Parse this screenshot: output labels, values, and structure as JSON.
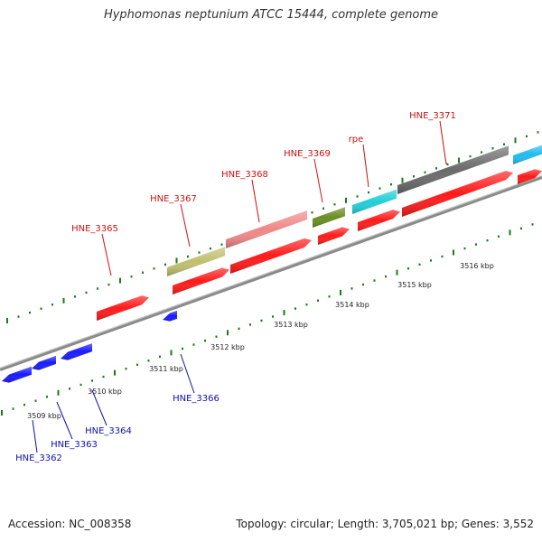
{
  "title": "Hyphomonas neptunium ATCC 15444, complete genome",
  "footer": {
    "accession": "Accession: NC_008358",
    "summary": "Topology: circular; Length: 3,705,021 bp; Genes: 3,552"
  },
  "colors": {
    "backbone": "#8a8a8a",
    "forward_label": "#cc1111",
    "reverse_label": "#1111aa",
    "tick": "#1a7a1a"
  },
  "scale_labels": [
    "3509 kbp",
    "3510 kbp",
    "3511 kbp",
    "3512 kbp",
    "3513 kbp",
    "3514 kbp",
    "3515 kbp",
    "3516 kbp"
  ],
  "genes": {
    "forward": [
      "HNE_3365",
      "HNE_3367",
      "HNE_3368",
      "HNE_3369",
      "rpe",
      "HNE_3371"
    ],
    "reverse": [
      "HNE_3362",
      "HNE_3363",
      "HNE_3364",
      "HNE_3366"
    ]
  },
  "feature_colors": [
    "#ff1a1a",
    "#1a1aff",
    "#c0bf70",
    "#f08888",
    "#6b8e23",
    "#22cfd6",
    "#6a6a6a",
    "#22bbee"
  ]
}
